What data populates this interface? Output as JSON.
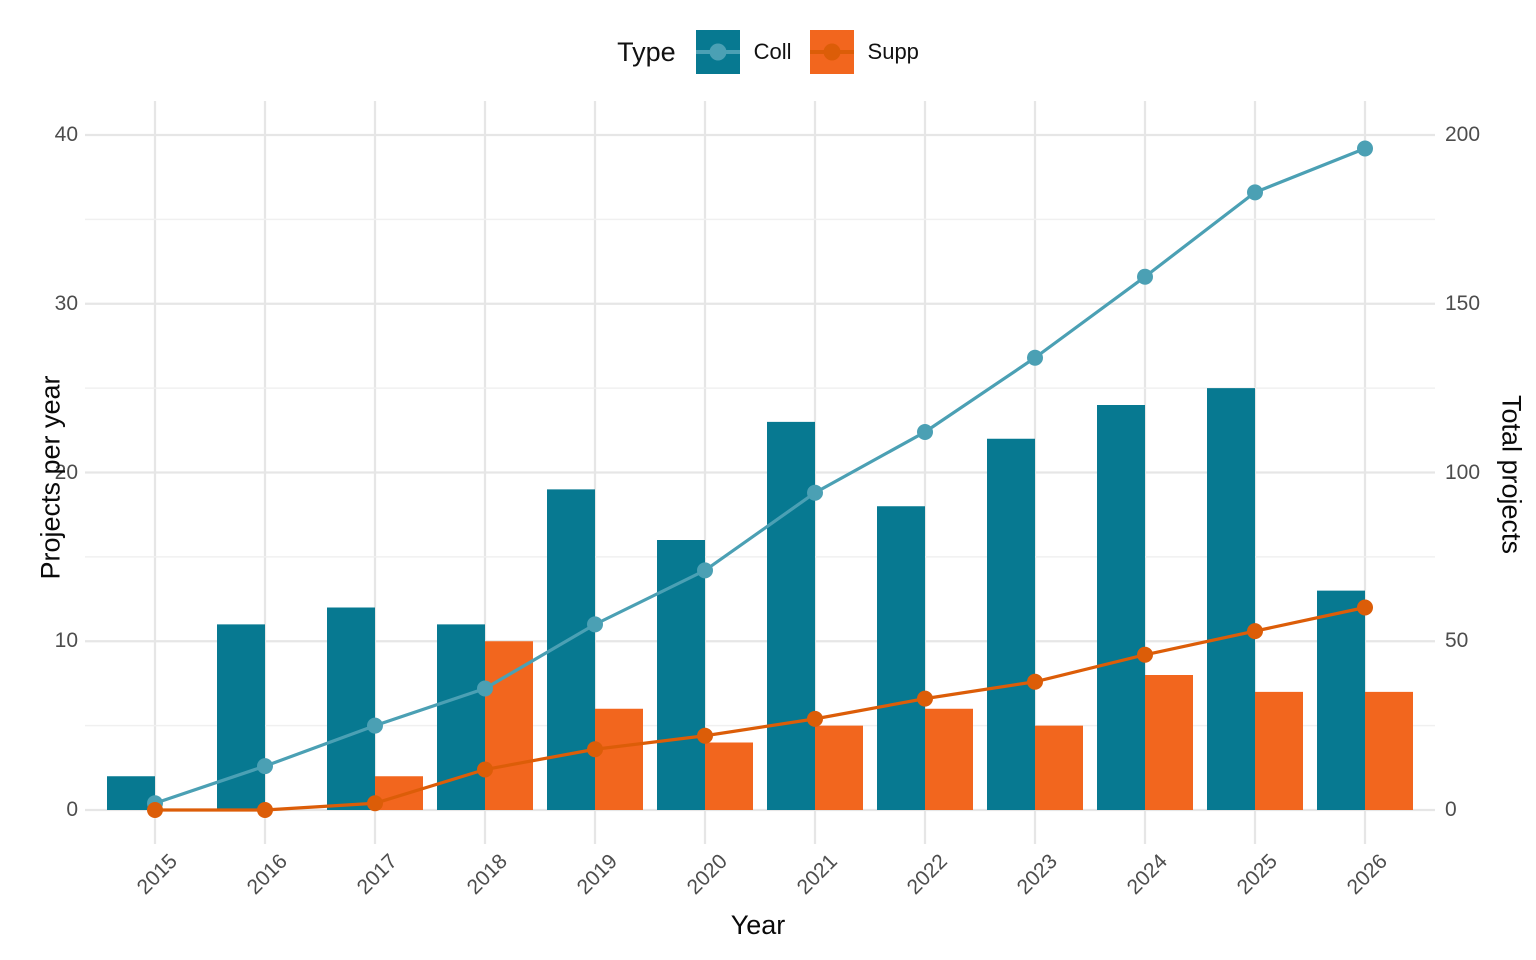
{
  "chart_data": {
    "type": "bar",
    "subtype": "dual-axis dodged bars with cumulative lines and points",
    "title": "",
    "categories": [
      "2015",
      "2016",
      "2017",
      "2018",
      "2019",
      "2020",
      "2021",
      "2022",
      "2023",
      "2024",
      "2025",
      "2026"
    ],
    "bar_series": [
      {
        "name": "Coll",
        "axis": "left",
        "color": "#077991",
        "values": [
          2,
          11,
          12,
          11,
          19,
          16,
          23,
          18,
          22,
          24,
          25,
          13
        ]
      },
      {
        "name": "Supp",
        "axis": "left",
        "color": "#F2661E",
        "values": [
          0,
          0,
          2,
          10,
          6,
          4,
          5,
          6,
          5,
          8,
          7,
          7
        ]
      }
    ],
    "line_series": [
      {
        "name": "Coll cumulative",
        "axis": "right",
        "color": "#4BA0B4",
        "values": [
          2,
          13,
          25,
          36,
          55,
          71,
          94,
          112,
          134,
          158,
          183,
          196
        ]
      },
      {
        "name": "Supp cumulative",
        "axis": "right",
        "color": "#DC5D08",
        "values": [
          0,
          0,
          2,
          12,
          18,
          22,
          27,
          33,
          38,
          46,
          53,
          60
        ]
      }
    ],
    "axes": {
      "left": {
        "label": "Projects per year",
        "range": [
          0,
          40
        ],
        "ticks": [
          0,
          10,
          20,
          30,
          40
        ],
        "minor_step": 5
      },
      "right": {
        "label": "Total projects",
        "range": [
          0,
          200
        ],
        "ticks": [
          0,
          50,
          100,
          150,
          200
        ]
      },
      "x": {
        "label": "Year",
        "tick_angle_deg": 45
      }
    },
    "grid": {
      "show": true,
      "major_color": "#E6E6E6",
      "minor_color": "#F0F0F0"
    },
    "legend": {
      "title": "Type",
      "position": "top",
      "entries": [
        {
          "label": "Coll",
          "swatch_color": "#077991",
          "line_color": "#4BA0B4"
        },
        {
          "label": "Supp",
          "swatch_color": "#F2661E",
          "line_color": "#DC5D08"
        }
      ]
    },
    "text_color": "#4D4D4D"
  }
}
